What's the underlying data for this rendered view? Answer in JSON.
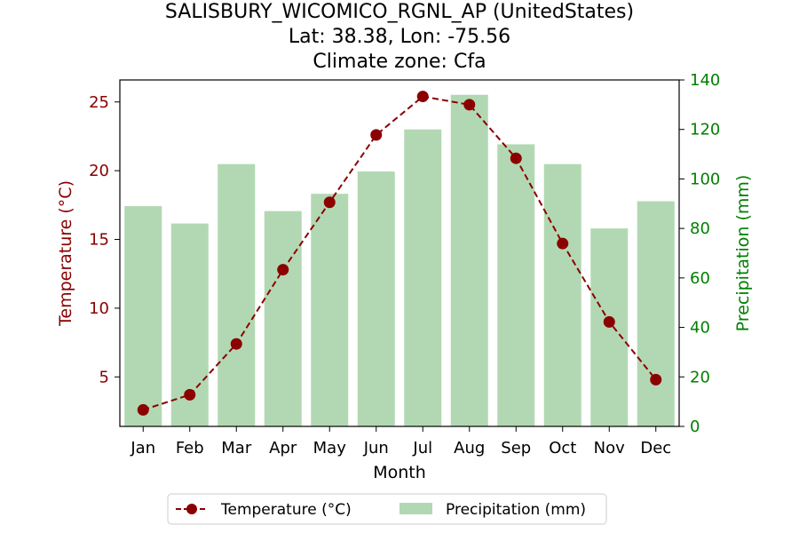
{
  "chart_data": {
    "type": "bar+line",
    "title_lines": [
      "SALISBURY_WICOMICO_RGNL_AP (UnitedStates)",
      "Lat: 38.38, Lon: -75.56",
      "Climate zone: Cfa"
    ],
    "xlabel": "Month",
    "ylabel_left": "Temperature (°C)",
    "ylabel_right": "Precipitation (mm)",
    "categories": [
      "Jan",
      "Feb",
      "Mar",
      "Apr",
      "May",
      "Jun",
      "Jul",
      "Aug",
      "Sep",
      "Oct",
      "Nov",
      "Dec"
    ],
    "temperature": [
      2.6,
      3.7,
      7.4,
      12.8,
      17.7,
      22.6,
      25.4,
      24.8,
      20.9,
      14.7,
      9.0,
      4.8
    ],
    "precipitation": [
      89,
      82,
      106,
      87,
      94,
      103,
      120,
      134,
      114,
      106,
      80,
      91
    ],
    "ylim_left": [
      1.4,
      26.6
    ],
    "ylim_right": [
      0,
      140
    ],
    "left_ticks": [
      5,
      10,
      15,
      20,
      25
    ],
    "right_ticks": [
      0,
      20,
      40,
      60,
      80,
      100,
      120,
      140
    ],
    "legend": [
      "Temperature (°C)",
      "Precipitation (mm)"
    ],
    "legend_position": "bottom-center",
    "colors": {
      "temperature": "#8b0000",
      "precipitation_bar": "#b2d8b3",
      "right_axis": "#008000"
    }
  }
}
